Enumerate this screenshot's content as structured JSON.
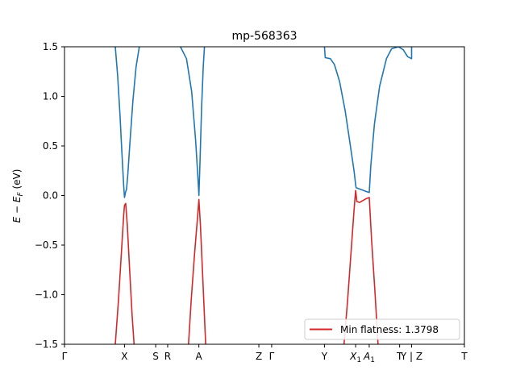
{
  "chart_data": {
    "type": "line",
    "title": "mp-568363",
    "ylabel_parts": [
      "E",
      " − E",
      "F",
      " (eV)"
    ],
    "ylim": [
      -1.5,
      1.5
    ],
    "y_ticks": [
      {
        "value": 1.5,
        "label": "1.5"
      },
      {
        "value": 1.0,
        "label": "1.0"
      },
      {
        "value": 0.5,
        "label": "0.5"
      },
      {
        "value": 0.0,
        "label": "0.0"
      },
      {
        "value": -0.5,
        "label": "−0.5"
      },
      {
        "value": -1.0,
        "label": "−1.0"
      },
      {
        "value": -1.5,
        "label": "−1.5"
      }
    ],
    "xlim": [
      0,
      1
    ],
    "x_ticks": [
      {
        "value": 0.0,
        "label": "Γ"
      },
      {
        "value": 0.15,
        "label": "X"
      },
      {
        "value": 0.228,
        "label": "S"
      },
      {
        "value": 0.258,
        "label": "R"
      },
      {
        "value": 0.336,
        "label": "A"
      },
      {
        "value": 0.486,
        "label": "Z"
      },
      {
        "value": 0.518,
        "label": "Γ"
      },
      {
        "value": 0.65,
        "label": "Y"
      },
      {
        "value": 0.728,
        "label": "X",
        "sub": "1"
      },
      {
        "value": 0.762,
        "label": "A",
        "sub": "1"
      },
      {
        "value": 0.838,
        "label": "T"
      },
      {
        "value": 0.868,
        "label": "Y | Z"
      },
      {
        "value": 1.0,
        "label": "T"
      }
    ],
    "series": [
      {
        "role": "conduction",
        "color": "#1f77b4",
        "segments": [
          [
            [
              0.127,
              1.5
            ],
            [
              0.133,
              1.2
            ],
            [
              0.139,
              0.8
            ],
            [
              0.144,
              0.4
            ],
            [
              0.148,
              0.1
            ],
            [
              0.15,
              -0.02
            ],
            [
              0.153,
              0.04
            ],
            [
              0.155,
              0.06
            ],
            [
              0.158,
              0.2
            ],
            [
              0.164,
              0.55
            ],
            [
              0.171,
              0.95
            ],
            [
              0.179,
              1.3
            ],
            [
              0.187,
              1.5
            ]
          ],
          [
            [
              0.29,
              1.5
            ],
            [
              0.305,
              1.38
            ],
            [
              0.318,
              1.05
            ],
            [
              0.328,
              0.55
            ],
            [
              0.334,
              0.15
            ],
            [
              0.336,
              0.0
            ],
            [
              0.339,
              0.35
            ],
            [
              0.343,
              0.9
            ],
            [
              0.347,
              1.3
            ],
            [
              0.35,
              1.5
            ]
          ],
          [
            [
              0.65,
              1.5
            ],
            [
              0.652,
              1.39
            ],
            [
              0.665,
              1.38
            ],
            [
              0.675,
              1.32
            ],
            [
              0.688,
              1.15
            ],
            [
              0.702,
              0.85
            ],
            [
              0.715,
              0.5
            ],
            [
              0.724,
              0.25
            ],
            [
              0.728,
              0.11
            ],
            [
              0.729,
              0.08
            ],
            [
              0.735,
              0.07
            ],
            [
              0.755,
              0.04
            ],
            [
              0.762,
              0.03
            ],
            [
              0.766,
              0.3
            ],
            [
              0.775,
              0.72
            ],
            [
              0.788,
              1.1
            ],
            [
              0.805,
              1.38
            ],
            [
              0.818,
              1.48
            ],
            [
              0.835,
              1.5
            ],
            [
              0.847,
              1.47
            ],
            [
              0.858,
              1.4
            ],
            [
              0.868,
              1.38
            ],
            [
              0.868,
              1.5
            ]
          ]
        ]
      },
      {
        "role": "valence",
        "color": "#d62728",
        "segments": [
          [
            [
              0.127,
              -1.5
            ],
            [
              0.135,
              -1.05
            ],
            [
              0.142,
              -0.6
            ],
            [
              0.148,
              -0.2
            ],
            [
              0.15,
              -0.1
            ],
            [
              0.153,
              -0.08
            ],
            [
              0.157,
              -0.3
            ],
            [
              0.163,
              -0.75
            ],
            [
              0.169,
              -1.2
            ],
            [
              0.174,
              -1.5
            ]
          ],
          [
            [
              0.31,
              -1.5
            ],
            [
              0.317,
              -1.05
            ],
            [
              0.325,
              -0.6
            ],
            [
              0.333,
              -0.2
            ],
            [
              0.336,
              -0.04
            ],
            [
              0.34,
              -0.3
            ],
            [
              0.346,
              -0.85
            ],
            [
              0.353,
              -1.5
            ]
          ],
          [
            [
              0.699,
              -1.5
            ],
            [
              0.708,
              -1.05
            ],
            [
              0.717,
              -0.55
            ],
            [
              0.724,
              -0.15
            ],
            [
              0.728,
              0.05
            ],
            [
              0.731,
              -0.06
            ],
            [
              0.738,
              -0.07
            ],
            [
              0.755,
              -0.03
            ],
            [
              0.762,
              -0.02
            ],
            [
              0.768,
              -0.45
            ],
            [
              0.776,
              -0.95
            ],
            [
              0.784,
              -1.5
            ]
          ]
        ]
      }
    ],
    "legend": {
      "label": "Min flatness: 1.3798",
      "color": "#d62728",
      "position": "lower-right"
    }
  }
}
